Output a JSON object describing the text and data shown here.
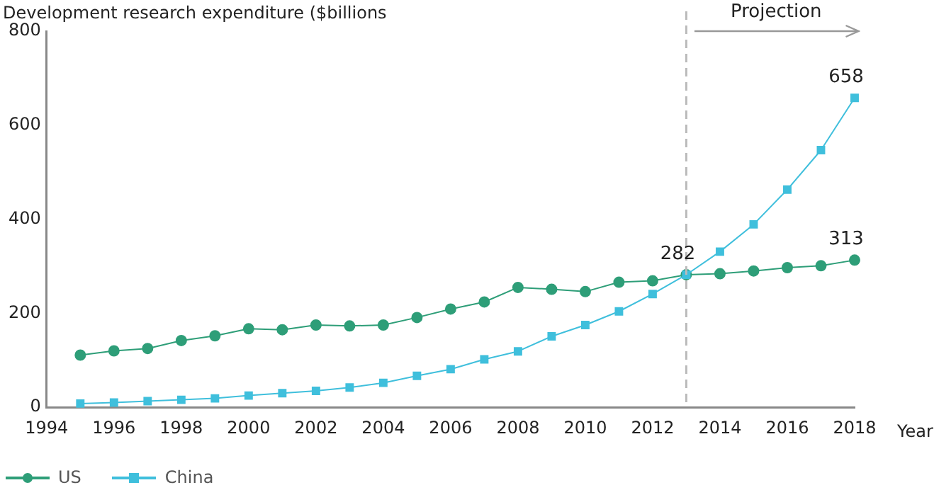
{
  "chart_data": {
    "type": "line",
    "ylabel": "Development research expenditure ($billions",
    "xlabel": "Year",
    "x": [
      1995,
      1996,
      1997,
      1998,
      1999,
      2000,
      2001,
      2002,
      2003,
      2004,
      2005,
      2006,
      2007,
      2008,
      2009,
      2010,
      2011,
      2012,
      2013,
      2014,
      2015,
      2016,
      2017,
      2018
    ],
    "series": [
      {
        "name": "US",
        "color": "#2e9e78",
        "marker": "circle",
        "values": [
          111,
          120,
          125,
          142,
          152,
          167,
          165,
          175,
          173,
          175,
          191,
          209,
          224,
          255,
          251,
          246,
          266,
          269,
          282,
          284,
          290,
          297,
          301,
          313
        ],
        "value_labels": [
          null,
          null,
          null,
          null,
          null,
          null,
          null,
          null,
          null,
          null,
          null,
          null,
          null,
          null,
          null,
          null,
          null,
          null,
          "282",
          null,
          null,
          null,
          null,
          "313"
        ]
      },
      {
        "name": "China",
        "color": "#3fbfdc",
        "marker": "square",
        "values": [
          8,
          10,
          13,
          16,
          19,
          25,
          30,
          35,
          42,
          52,
          67,
          81,
          102,
          119,
          151,
          175,
          204,
          241,
          282,
          331,
          389,
          463,
          547,
          658
        ],
        "value_labels": [
          null,
          null,
          null,
          null,
          null,
          null,
          null,
          null,
          null,
          null,
          null,
          null,
          null,
          null,
          null,
          null,
          null,
          null,
          null,
          null,
          null,
          null,
          null,
          "658"
        ]
      }
    ],
    "xlim": [
      1994,
      2018
    ],
    "xticks": [
      1994,
      1996,
      1998,
      2000,
      2002,
      2004,
      2006,
      2008,
      2010,
      2012,
      2014,
      2016,
      2018
    ],
    "ylim": [
      0,
      800
    ],
    "yticks": [
      0,
      200,
      400,
      600,
      800
    ],
    "grid": false,
    "legend": "bottom left",
    "ref_lines": [
      {
        "axis": "x",
        "value": 2013,
        "color": "#bbbbbb",
        "line_style": "dashed"
      }
    ],
    "annotations": [
      "Projection"
    ]
  }
}
